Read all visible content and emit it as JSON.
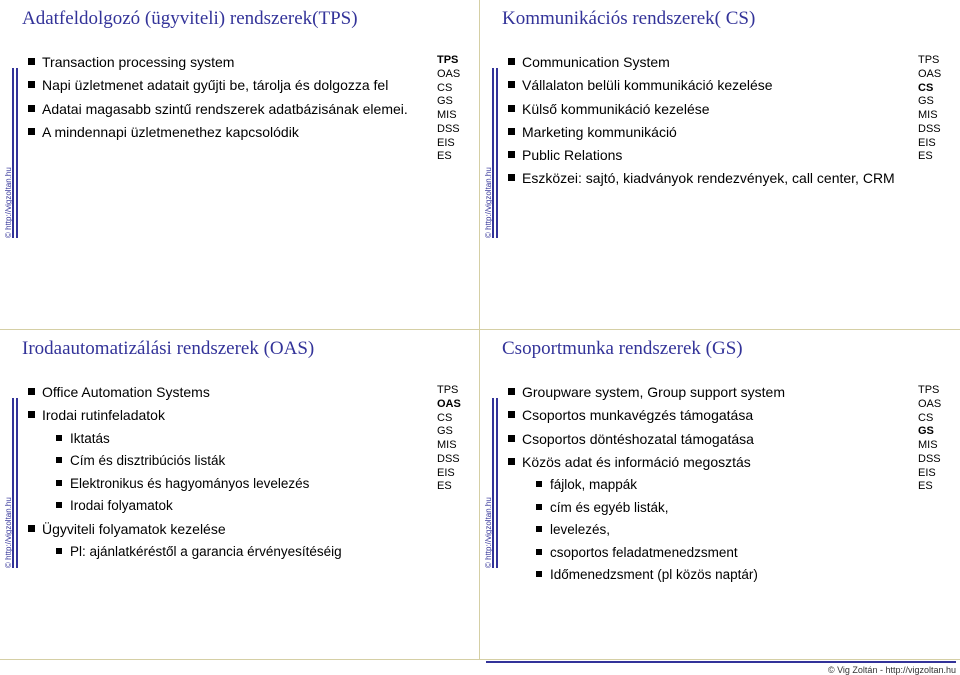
{
  "colors": {
    "title": "#333399",
    "bar": "#333399",
    "text": "#000000",
    "divider": "#d5cfa5",
    "background": "#ffffff"
  },
  "fonts": {
    "title_family": "Comic Sans MS",
    "body_family": "Arial",
    "title_size_pt": 19,
    "body_size_pt": 14,
    "syslist_size_pt": 11
  },
  "credit": "© http://vigzoltan.hu",
  "footer": "© Vig Zoltán - http://vigzoltan.hu",
  "syslabels": [
    "TPS",
    "OAS",
    "CS",
    "GS",
    "MIS",
    "DSS",
    "EIS",
    "ES"
  ],
  "slides": [
    {
      "title": "Adatfeldolgozó (ügyviteli) rendszerek(TPS)",
      "highlight": "TPS",
      "items": [
        {
          "t": "Transaction processing system"
        },
        {
          "t": "Napi üzletmenet adatait gyűjti be, tárolja és dolgozza fel"
        },
        {
          "t": "Adatai magasabb szintű rendszerek adatbázisának elemei."
        },
        {
          "t": "A mindennapi üzletmenethez kapcsolódik"
        }
      ]
    },
    {
      "title": "Kommunikációs rendszerek( CS)",
      "highlight": "CS",
      "items": [
        {
          "t": "Communication System"
        },
        {
          "t": "Vállalaton belüli kommunikáció kezelése"
        },
        {
          "t": "Külső kommunikáció kezelése"
        },
        {
          "t": "Marketing kommunikáció"
        },
        {
          "t": "Public Relations"
        },
        {
          "t": "Eszközei: sajtó, kiadványok rendezvények, call center, CRM"
        }
      ]
    },
    {
      "title": "Irodaautomatizálási rendszerek (OAS)",
      "highlight": "OAS",
      "items": [
        {
          "t": "Office Automation Systems"
        },
        {
          "t": "Irodai rutinfeladatok",
          "sub": [
            "Iktatás",
            "Cím és disztribúciós listák",
            "Elektronikus és hagyományos levelezés",
            "Irodai folyamatok"
          ]
        },
        {
          "t": "Ügyviteli folyamatok kezelése",
          "sub": [
            "Pl: ajánlatkéréstől a garancia érvényesítéséig"
          ]
        }
      ]
    },
    {
      "title": "Csoportmunka rendszerek (GS)",
      "highlight": "GS",
      "items": [
        {
          "t": "Groupware system, Group support system"
        },
        {
          "t": "Csoportos munkavégzés támogatása"
        },
        {
          "t": "Csoportos döntéshozatal támogatása"
        },
        {
          "t": "Közös adat és információ megosztás",
          "sub": [
            "fájlok, mappák",
            "cím és egyéb listák,",
            "levelezés,",
            "csoportos feladatmenedzsment",
            "Időmenedzsment (pl közös naptár)"
          ]
        }
      ]
    }
  ]
}
